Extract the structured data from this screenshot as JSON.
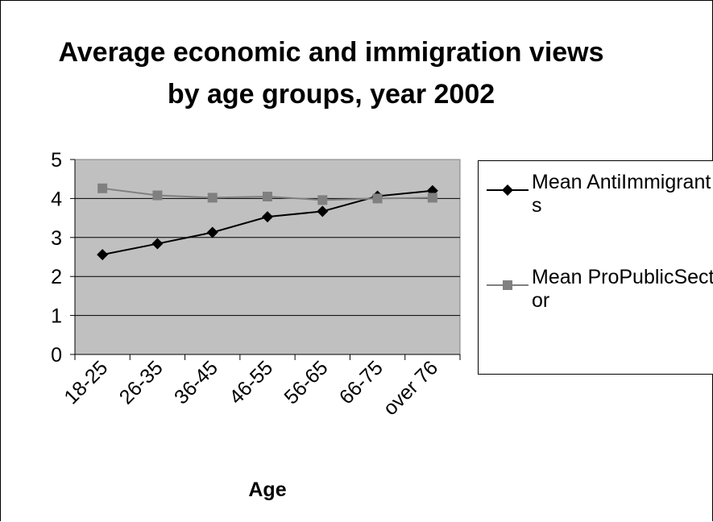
{
  "chart_data": {
    "type": "line",
    "title": "Average economic and immigration views by age groups, year 2002",
    "xlabel": "Age",
    "ylabel": "",
    "categories": [
      "18-25",
      "26-35",
      "36-45",
      "46-55",
      "56-65",
      "66-75",
      "over 76"
    ],
    "ylim": [
      0,
      5
    ],
    "yticks": [
      "0",
      "1",
      "2",
      "3",
      "4",
      "5"
    ],
    "grid": true,
    "legend_position": "right",
    "plot_background": "#c0c0c0",
    "series": [
      {
        "name": "Mean AntiImmigrants",
        "values": [
          2.56,
          2.84,
          3.13,
          3.53,
          3.67,
          4.06,
          4.2
        ],
        "color": "#000000",
        "marker": "diamond"
      },
      {
        "name": "Mean ProPublicSector",
        "values": [
          4.26,
          4.08,
          4.02,
          4.05,
          3.96,
          4.0,
          4.02
        ],
        "color": "#808080",
        "marker": "square"
      }
    ]
  }
}
